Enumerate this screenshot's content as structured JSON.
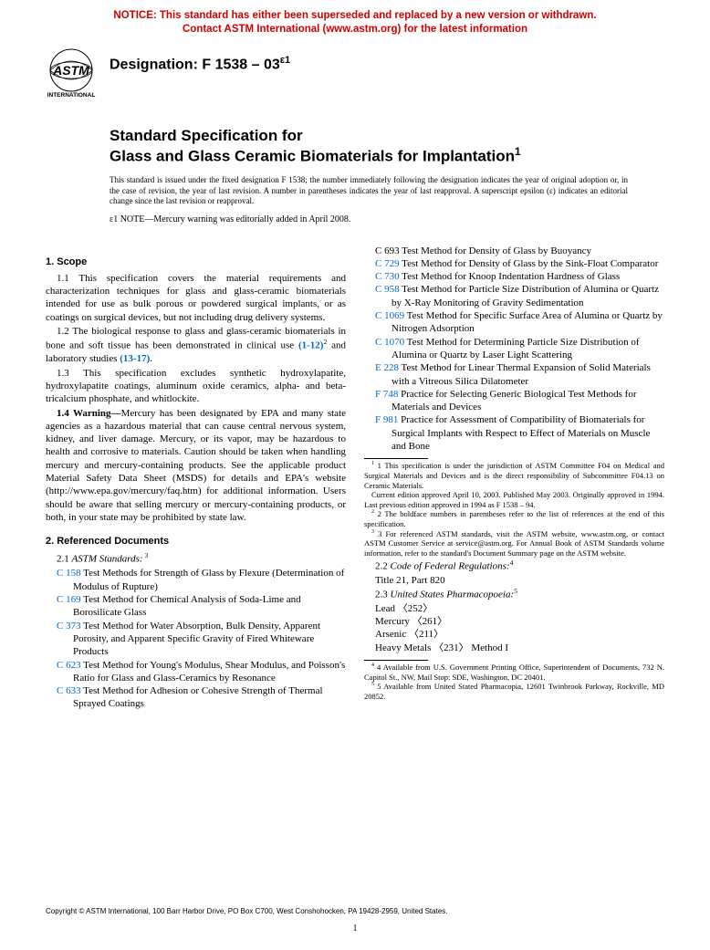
{
  "notice": {
    "line1": "NOTICE: This standard has either been superseded and replaced by a new version or withdrawn.",
    "line2": "Contact ASTM International (www.astm.org) for the latest information"
  },
  "logo_text_top": "ASTM",
  "logo_text_bottom": "INTERNATIONAL",
  "designation_label": "Designation: ",
  "designation_code": "F 1538 – 03",
  "designation_sup": "ε1",
  "title": {
    "line1": "Standard Specification for",
    "line2_main": "Glass and Glass Ceramic Biomaterials for Implantation",
    "line2_sup": "1"
  },
  "issue_note": "This standard is issued under the fixed designation F 1538; the number immediately following the designation indicates the year of original adoption or, in the case of revision, the year of last revision. A number in parentheses indicates the year of last reapproval. A superscript epsilon (ε) indicates an editorial change since the last revision or reapproval.",
  "eps_note": {
    "prefix": "ε1",
    "label": " NOTE—",
    "text": "Mercury warning was editorially added in April 2008."
  },
  "sections": {
    "scope": {
      "head": "1. Scope",
      "p1": "1.1 This specification covers the material requirements and characterization techniques for glass and glass-ceramic biomaterials intended for use as bulk porous or powdered surgical implants, or as coatings on surgical devices, but not including drug delivery systems.",
      "p2a": "1.2 The biological response to glass and glass-ceramic biomaterials in bone and soft tissue has been demonstrated in clinical use ",
      "p2_ref1": "(1-12)",
      "p2_sup": "2",
      "p2b": " and laboratory studies ",
      "p2_ref2": "(13-17)",
      "p2c": ".",
      "p3": "1.3 This specification excludes synthetic hydroxylapatite, hydroxylapatite coatings, aluminum oxide ceramics, alpha- and beta-tricalcium phosphate, and whitlockite.",
      "p4_label": "1.4 Warning—",
      "p4": "Mercury has been designated by EPA and many state agencies as a hazardous material that can cause central nervous system, kidney, and liver damage. Mercury, or its vapor, may be hazardous to health and corrosive to materials. Caution should be taken when handling mercury and mercury-containing products. See the applicable product Material Safety Data Sheet (MSDS) for details and EPA's website (http://www.epa.gov/mercury/faq.htm) for additional information. Users should be aware that selling mercury or mercury-containing products, or both, in your state may be prohibited by state law."
    },
    "refs": {
      "head": "2. Referenced Documents",
      "sub1_num": "2.1 ",
      "sub1_title": "ASTM Standards:",
      "sub1_sup": " 3",
      "items": [
        {
          "code": "C 158",
          "blue": true,
          "desc": " Test Methods for Strength of Glass by Flexure (Determination of Modulus of Rupture)"
        },
        {
          "code": "C 169",
          "blue": true,
          "desc": " Test Method for Chemical Analysis of Soda-Lime and Borosilicate Glass"
        },
        {
          "code": "C 373",
          "blue": true,
          "desc": " Test Method for Water Absorption, Bulk Density, Apparent Porosity, and Apparent Specific Gravity of Fired Whiteware Products"
        },
        {
          "code": "C 623",
          "blue": true,
          "desc": " Test Method for Young's Modulus, Shear Modulus, and Poisson's Ratio for Glass and Glass-Ceramics by Resonance"
        },
        {
          "code": "C 633",
          "blue": true,
          "desc": " Test Method for Adhesion or Cohesive Strength of Thermal Sprayed Coatings"
        },
        {
          "code": "C 693",
          "blue": false,
          "desc": " Test Method for Density of Glass by Buoyancy"
        },
        {
          "code": "C 729",
          "blue": true,
          "desc": " Test Method for Density of Glass by the Sink-Float Comparator"
        },
        {
          "code": "C 730",
          "blue": true,
          "desc": " Test Method for Knoop Indentation Hardness of Glass"
        },
        {
          "code": "C 958",
          "blue": true,
          "desc": " Test Method for Particle Size Distribution of Alumina or Quartz by X-Ray Monitoring of Gravity Sedimentation"
        },
        {
          "code": "C 1069",
          "blue": true,
          "desc": " Test Method for Specific Surface Area of Alumina or Quartz by Nitrogen Adsorption"
        },
        {
          "code": "C 1070",
          "blue": true,
          "desc": " Test Method for Determining Particle Size Distribution of Alumina or Quartz by Laser Light Scattering"
        },
        {
          "code": "E 228",
          "blue": true,
          "desc": " Test Method for Linear Thermal Expansion of Solid Materials with a Vitreous Silica Dilatometer"
        },
        {
          "code": "F 748",
          "blue": true,
          "desc": " Practice for Selecting Generic Biological Test Methods for Materials and Devices"
        },
        {
          "code": "F 981",
          "blue": true,
          "desc": " Practice for Assessment of Compatibility of Biomaterials for Surgical Implants with Respect to Effect of Materials on Muscle and Bone"
        }
      ],
      "sub2_num": "2.2 ",
      "sub2_title": "Code of Federal Regulations:",
      "sub2_sup": "4",
      "sub2_item": "Title 21, Part 820",
      "sub3_num": "2.3 ",
      "sub3_title": "United States Pharmacopoeia:",
      "sub3_sup": "5",
      "usp": [
        "Lead 〈252〉",
        "Mercury 〈261〉",
        "Arsenic 〈211〉",
        "Heavy Metals 〈231〉 Method I"
      ]
    }
  },
  "footnotes_left": {
    "f1": "1 This specification is under the jurisdiction of ASTM Committee F04 on Medical and Surgical Materials and Devices and is the direct responsibility of Subcommittee F04.13 on Ceramic Materials.",
    "f1b": "Current edition approved April 10, 2003. Published May 2003. Originally approved in 1994. Last previous edition approved in 1994 as F 1538 – 94.",
    "f2": "2 The boldface numbers in parentheses refer to the list of references at the end of this specification.",
    "f3": "3 For referenced ASTM standards, visit the ASTM website, www.astm.org, or contact ASTM Customer Service at service@astm.org. For Annual Book of ASTM Standards volume information, refer to the standard's Document Summary page on the ASTM website."
  },
  "footnotes_right": {
    "f4": "4 Available from U.S. Government Printing Office, Superintendent of Documents, 732 N. Capitol St., NW, Mail Stop: SDE, Washington, DC 20401.",
    "f5": "5 Available from United Stated Pharmacopia, 12601 Twinbrook Parkway, Rockville, MD 20852."
  },
  "copyright": "Copyright © ASTM International, 100 Barr Harbor Drive, PO Box C700, West Conshohocken, PA 19428-2959, United States.",
  "pagenum": "1"
}
